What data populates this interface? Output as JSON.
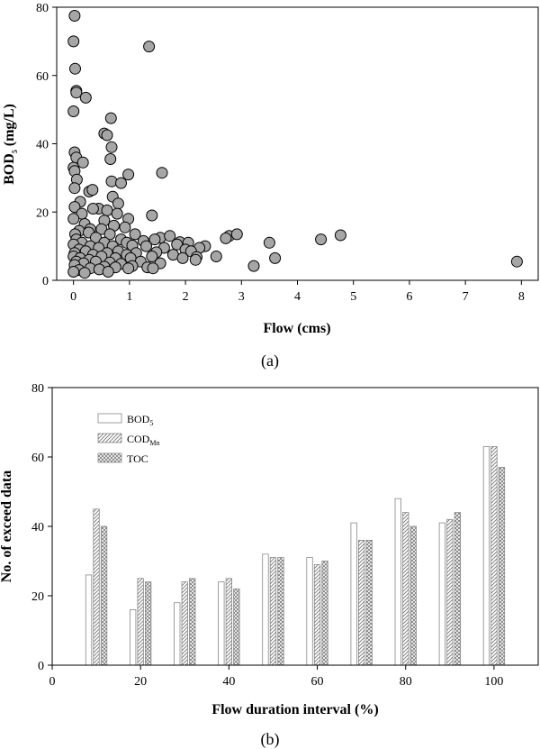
{
  "chart_data": [
    {
      "type": "scatter",
      "caption": "(a)",
      "xlabel": "Flow  (cms)",
      "ylabel_main": "BOD",
      "ylabel_sub": "5",
      "ylabel_unit": " (mg/L)",
      "xlim": [
        -0.3,
        8.3
      ],
      "ylim": [
        0,
        80
      ],
      "xticks": [
        0,
        1,
        2,
        3,
        4,
        5,
        6,
        7,
        8
      ],
      "yticks": [
        0,
        20,
        40,
        60,
        80
      ],
      "marker_color": "#a6a6a6",
      "points": [
        [
          0.02,
          77.5
        ],
        [
          0.0,
          70.0
        ],
        [
          0.03,
          62.0
        ],
        [
          0.05,
          55.5
        ],
        [
          0.05,
          55.0
        ],
        [
          0.0,
          49.5
        ],
        [
          0.22,
          53.5
        ],
        [
          1.35,
          68.5
        ],
        [
          0.67,
          47.5
        ],
        [
          0.55,
          43.0
        ],
        [
          0.6,
          42.5
        ],
        [
          0.68,
          39.0
        ],
        [
          0.02,
          37.5
        ],
        [
          0.05,
          36.0
        ],
        [
          0.66,
          35.5
        ],
        [
          0.0,
          33.0
        ],
        [
          0.02,
          32.0
        ],
        [
          0.17,
          34.5
        ],
        [
          1.58,
          31.5
        ],
        [
          0.98,
          31.0
        ],
        [
          0.06,
          29.5
        ],
        [
          0.68,
          29.0
        ],
        [
          0.85,
          28.5
        ],
        [
          0.02,
          27.0
        ],
        [
          0.28,
          26.0
        ],
        [
          0.34,
          26.5
        ],
        [
          0.7,
          24.5
        ],
        [
          0.12,
          23.0
        ],
        [
          0.45,
          21.0
        ],
        [
          0.8,
          22.5
        ],
        [
          1.4,
          19.0
        ],
        [
          0.02,
          21.5
        ],
        [
          0.15,
          19.5
        ],
        [
          0.35,
          21.0
        ],
        [
          0.6,
          20.5
        ],
        [
          0.78,
          19.5
        ],
        [
          0.98,
          18.0
        ],
        [
          0.55,
          17.5
        ],
        [
          0.0,
          18.0
        ],
        [
          0.2,
          16.5
        ],
        [
          0.72,
          16.0
        ],
        [
          0.92,
          15.5
        ],
        [
          0.3,
          15.0
        ],
        [
          0.5,
          15.0
        ],
        [
          0.1,
          14.5
        ],
        [
          0.03,
          13.5
        ],
        [
          0.27,
          14.0
        ],
        [
          0.65,
          13.5
        ],
        [
          1.1,
          13.5
        ],
        [
          1.55,
          12.5
        ],
        [
          1.72,
          13.0
        ],
        [
          2.78,
          13.0
        ],
        [
          2.92,
          13.5
        ],
        [
          4.77,
          13.2
        ],
        [
          0.05,
          12.0
        ],
        [
          0.4,
          12.5
        ],
        [
          0.85,
          12.0
        ],
        [
          1.25,
          11.5
        ],
        [
          1.45,
          12.0
        ],
        [
          2.72,
          12.3
        ],
        [
          4.42,
          12.0
        ],
        [
          0.15,
          11.0
        ],
        [
          0.55,
          11.0
        ],
        [
          0.95,
          11.0
        ],
        [
          1.9,
          11.2
        ],
        [
          2.05,
          11.0
        ],
        [
          2.35,
          10.0
        ],
        [
          3.5,
          11.0
        ],
        [
          0.0,
          10.5
        ],
        [
          0.3,
          10.0
        ],
        [
          0.7,
          10.0
        ],
        [
          1.05,
          10.2
        ],
        [
          1.3,
          10.0
        ],
        [
          1.85,
          10.5
        ],
        [
          2.25,
          9.5
        ],
        [
          0.1,
          9.0
        ],
        [
          0.45,
          9.5
        ],
        [
          0.8,
          8.5
        ],
        [
          1.62,
          9.5
        ],
        [
          2.0,
          9.0
        ],
        [
          2.1,
          8.5
        ],
        [
          0.02,
          8.0
        ],
        [
          0.22,
          8.5
        ],
        [
          0.6,
          8.0
        ],
        [
          1.12,
          8.0
        ],
        [
          1.48,
          8.2
        ],
        [
          0.35,
          7.5
        ],
        [
          0.95,
          7.5
        ],
        [
          1.78,
          7.5
        ],
        [
          0.0,
          7.0
        ],
        [
          0.5,
          7.0
        ],
        [
          0.75,
          6.5
        ],
        [
          1.4,
          7.0
        ],
        [
          2.2,
          6.8
        ],
        [
          2.55,
          7.0
        ],
        [
          0.12,
          6.5
        ],
        [
          0.28,
          6.0
        ],
        [
          1.02,
          6.5
        ],
        [
          1.95,
          6.5
        ],
        [
          2.18,
          6.0
        ],
        [
          3.6,
          6.5
        ],
        [
          0.05,
          5.5
        ],
        [
          0.4,
          5.5
        ],
        [
          0.65,
          5.2
        ],
        [
          1.2,
          5.5
        ],
        [
          0.18,
          5.0
        ],
        [
          0.85,
          4.8
        ],
        [
          1.55,
          5.0
        ],
        [
          0.02,
          4.5
        ],
        [
          0.55,
          4.0
        ],
        [
          1.05,
          4.2
        ],
        [
          0.3,
          3.5
        ],
        [
          0.75,
          3.8
        ],
        [
          0.98,
          3.5
        ],
        [
          1.32,
          3.8
        ],
        [
          1.42,
          3.5
        ],
        [
          3.22,
          4.2
        ],
        [
          0.1,
          3.0
        ],
        [
          0.46,
          3.2
        ],
        [
          0.0,
          2.5
        ],
        [
          0.2,
          2.2
        ],
        [
          0.62,
          2.5
        ],
        [
          7.92,
          5.5
        ]
      ]
    },
    {
      "type": "bar",
      "caption": "(b)",
      "xlabel": "Flow duration interval (%)",
      "ylabel": "No. of exceed data",
      "xlim": [
        0,
        110
      ],
      "ylim": [
        0,
        80
      ],
      "xticks": [
        0,
        20,
        40,
        60,
        80,
        100
      ],
      "yticks": [
        0,
        20,
        40,
        60,
        80
      ],
      "categories": [
        10,
        20,
        30,
        40,
        50,
        60,
        70,
        80,
        90,
        100
      ],
      "series": [
        {
          "name": "BOD",
          "name_sub": "5",
          "pattern": "plain",
          "values": [
            26,
            16,
            18,
            24,
            32,
            31,
            41,
            48,
            41,
            63
          ]
        },
        {
          "name": "COD",
          "name_sub": "Mn",
          "pattern": "diagonal",
          "values": [
            45,
            25,
            24,
            25,
            31,
            29,
            36,
            44,
            42,
            63
          ]
        },
        {
          "name": "TOC",
          "name_sub": "",
          "pattern": "crosshatch",
          "values": [
            40,
            24,
            25,
            22,
            31,
            30,
            36,
            40,
            44,
            57
          ]
        }
      ]
    }
  ]
}
